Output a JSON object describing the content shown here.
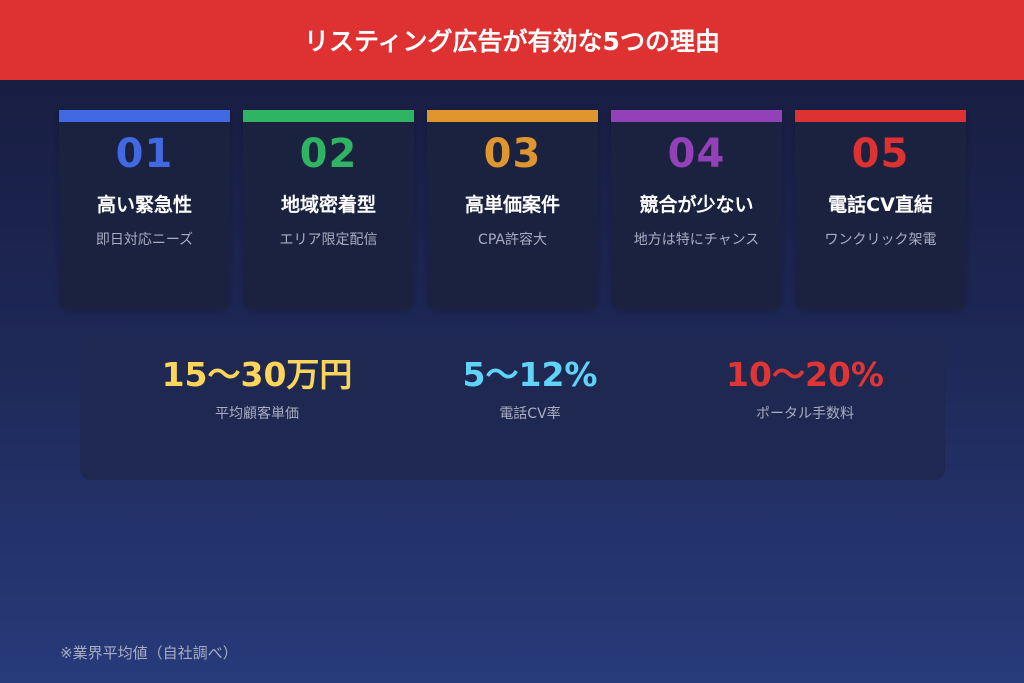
{
  "header": {
    "title": "リスティング広告が有効な5つの理由",
    "color": "#de3131"
  },
  "cards": [
    {
      "number": "01",
      "title": "高い緊急性",
      "subtitle": "即日対応ニーズ",
      "color": "#4169e1"
    },
    {
      "number": "02",
      "title": "地域密着型",
      "subtitle": "エリア限定配信",
      "color": "#2fb463"
    },
    {
      "number": "03",
      "title": "高単価案件",
      "subtitle": "CPA許容大",
      "color": "#e0962f"
    },
    {
      "number": "04",
      "title": "競合が少ない",
      "subtitle": "地方は特にチャンス",
      "color": "#9241b8"
    },
    {
      "number": "05",
      "title": "電話CV直結",
      "subtitle": "ワンクリック架電",
      "color": "#de3131"
    }
  ],
  "stats": [
    {
      "value": "15〜30万円",
      "label": "平均顧客単価",
      "color": "#fcd55a"
    },
    {
      "value": "5〜12%",
      "label": "電話CV率",
      "color": "#5fd3fa"
    },
    {
      "value": "10〜20%",
      "label": "ポータル手数料",
      "color": "#e03535"
    }
  ],
  "footnote": "※業界平均値（自社調べ）"
}
